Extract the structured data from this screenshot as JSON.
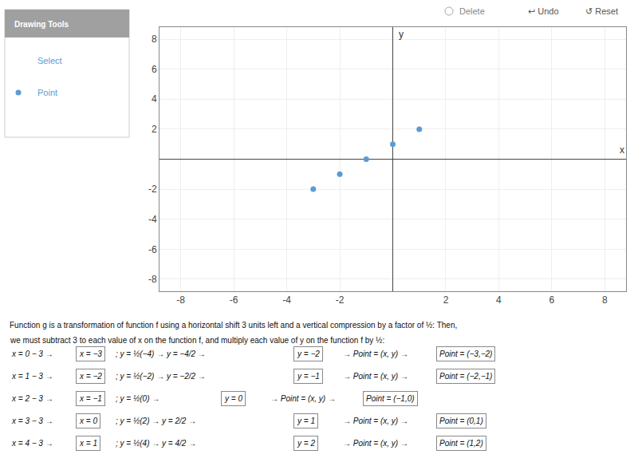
{
  "chart_data": {
    "type": "scatter",
    "x": [
      -3,
      -2,
      -1,
      0,
      1
    ],
    "values": [
      -2,
      -1,
      0,
      1,
      2
    ],
    "color": "#5b9bd5",
    "xlabel": "x",
    "ylabel": "y",
    "xlim": [
      -8.8,
      8.8
    ],
    "ylim": [
      -8.8,
      8.8
    ],
    "xticks": [
      -8,
      -6,
      -4,
      -2,
      2,
      4,
      6,
      8
    ],
    "yticks": [
      -8,
      -6,
      -4,
      -2,
      2,
      4,
      6,
      8
    ],
    "grid": true,
    "annotations": [
      "Drawing Tools",
      "Select",
      "Point",
      "Delete",
      "↩ Undo",
      "↺ Reset",
      "Function g is a transformation of function f using a horizontal shift 3 units left and a vertical compression by a factor of ½: Then,",
      "we must subtract 3 to each value of x on the function f, and multiply each value of y on the function f by ½:",
      "x = 0 − 3 →",
      "x = −3",
      "; y = ½(−4) → y = −4/2 →",
      "y = −2",
      "→ Point = (x, y) →",
      "Point = (−3,−2)",
      "x = 1 − 3 →",
      "x = −2",
      "; y = ½(−2) → y = −2/2 →",
      "y = −1",
      "→ Point = (x, y) →",
      "Point = (−2,−1)",
      "x = 2 − 3 →",
      "x = −1",
      "; y = ½(0) →",
      "y = 0",
      "→ Point = (x, y) →",
      "Point = (−1,0)",
      "x = 3 − 3 →",
      "x = 0",
      "; y = ½(2) → y = 2/2 →",
      "y = 1",
      "→ Point = (x, y) →",
      "Point = (0,1)",
      "x = 4 − 3 →",
      "x = 1",
      "; y = ½(4) → y = 4/2 →",
      "y = 2",
      "→ Point = (x, y) →",
      "Point = (1,2)"
    ]
  }
}
